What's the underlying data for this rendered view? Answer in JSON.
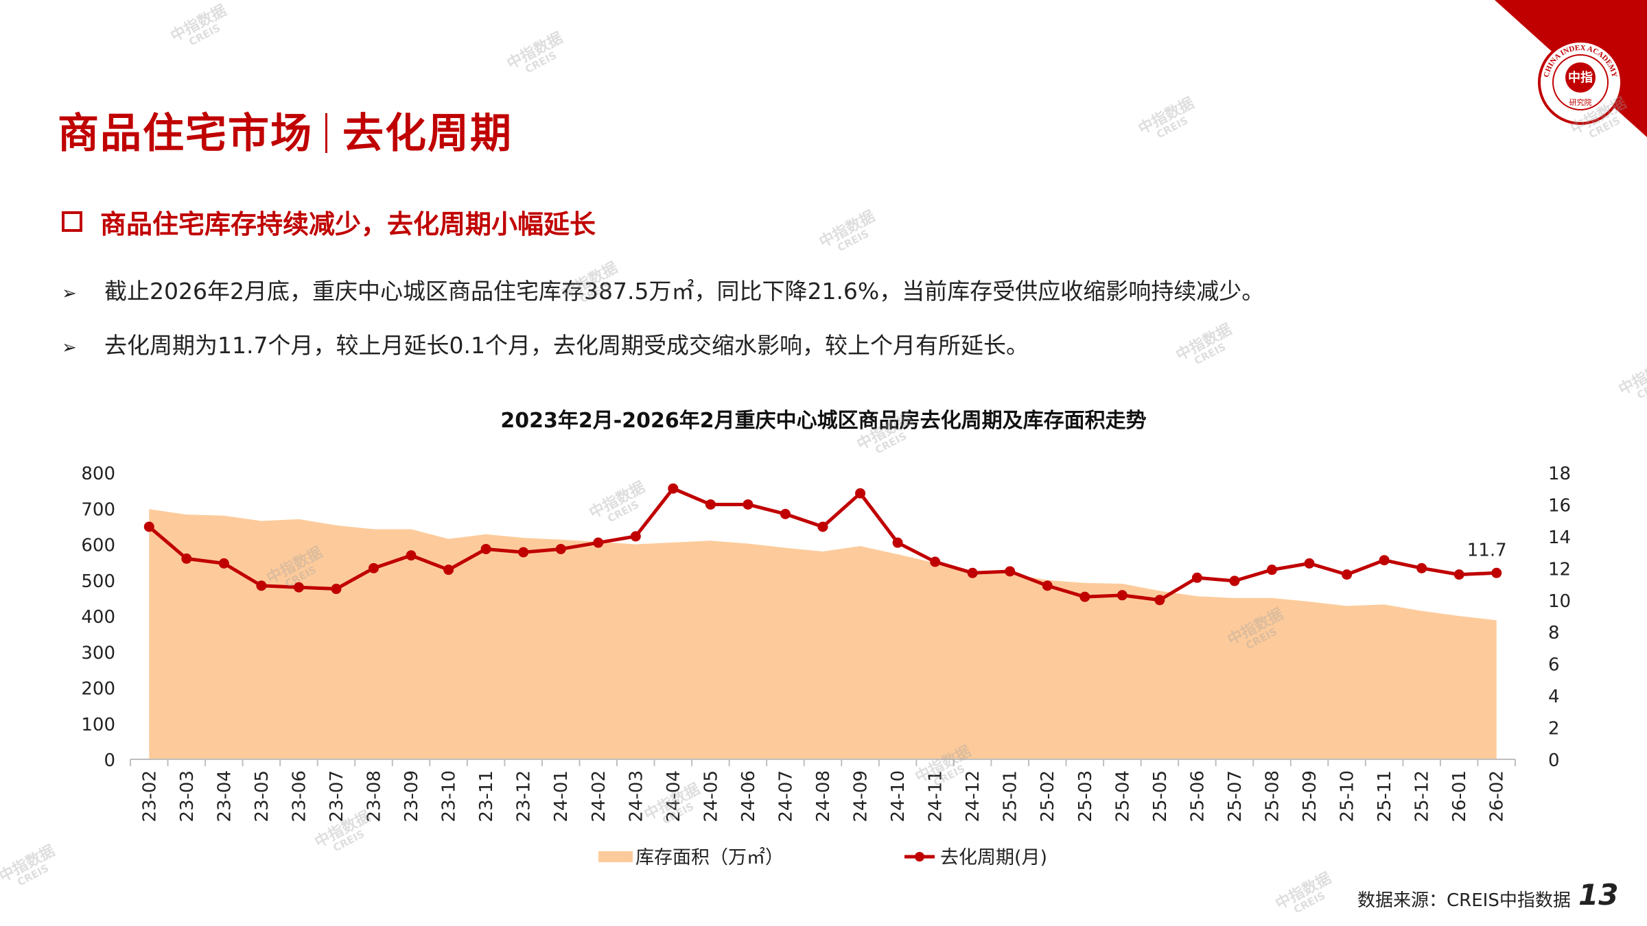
{
  "header": {
    "title_main": "商品住宅市场",
    "title_sub": "去化周期",
    "logo_text": "CHINA INDEX ACADEMY",
    "logo_center": "中指",
    "logo_bottom": "研究院"
  },
  "section": {
    "heading": "商品住宅库存持续减少，去化周期小幅延长",
    "bullets": [
      "截止2026年2月底，重庆中心城区商品住宅库存387.5万㎡，同比下降21.6%，当前库存受供应收缩影响持续减少。",
      "去化周期为11.7个月，较上月延长0.1个月，去化周期受成交缩水影响，较上个月有所延长。"
    ],
    "bullet_glyph": "➢"
  },
  "watermark": {
    "line1": "中指数据",
    "line2": "CREIS"
  },
  "footer": {
    "source": "数据来源：CREIS中指数据",
    "page_number": "13"
  },
  "colors": {
    "accent": "#C00000",
    "area": "#FDCB9B",
    "line": "#C00000"
  },
  "chart_data": {
    "type": "area+line",
    "title": "2023年2月-2026年2月重庆中心城区商品房去化周期及库存面积走势",
    "categories": [
      "23-02",
      "23-03",
      "23-04",
      "23-05",
      "23-06",
      "23-07",
      "23-08",
      "23-09",
      "23-10",
      "23-11",
      "23-12",
      "24-01",
      "24-02",
      "24-03",
      "24-04",
      "24-05",
      "24-06",
      "24-07",
      "24-08",
      "24-09",
      "24-10",
      "24-11",
      "24-12",
      "25-01",
      "25-02",
      "25-03",
      "25-04",
      "25-05",
      "25-06",
      "25-07",
      "25-08",
      "25-09",
      "25-10",
      "25-11",
      "25-12",
      "26-01",
      "26-02"
    ],
    "series": [
      {
        "name": "库存面积（万㎡）",
        "type": "area",
        "axis": "left",
        "values": [
          698,
          683,
          680,
          665,
          670,
          653,
          642,
          642,
          615,
          628,
          618,
          613,
          607,
          600,
          605,
          610,
          602,
          590,
          580,
          595,
          572,
          548,
          525,
          518,
          500,
          492,
          490,
          470,
          455,
          450,
          450,
          440,
          428,
          432,
          414,
          400,
          388
        ]
      },
      {
        "name": "去化周期(月)",
        "type": "line",
        "axis": "right",
        "values": [
          14.6,
          12.6,
          12.3,
          10.9,
          10.8,
          10.7,
          12.0,
          12.8,
          11.9,
          13.2,
          13.0,
          13.2,
          13.6,
          14.0,
          17.0,
          16.0,
          16.0,
          15.4,
          14.6,
          16.7,
          13.6,
          12.4,
          11.7,
          11.8,
          10.9,
          10.2,
          10.3,
          10.0,
          11.4,
          11.2,
          11.9,
          12.3,
          11.6,
          12.5,
          12.0,
          11.6,
          11.7
        ]
      }
    ],
    "y_left": {
      "min": 0,
      "max": 800,
      "ticks": [
        0,
        100,
        200,
        300,
        400,
        500,
        600,
        700,
        800
      ]
    },
    "y_right": {
      "min": 0,
      "max": 18,
      "ticks": [
        0,
        2,
        4,
        6,
        8,
        10,
        12,
        14,
        16,
        18
      ]
    },
    "annotations": [
      {
        "index": 36,
        "series": 1,
        "label": "11.7"
      }
    ],
    "legend_position": "bottom"
  }
}
